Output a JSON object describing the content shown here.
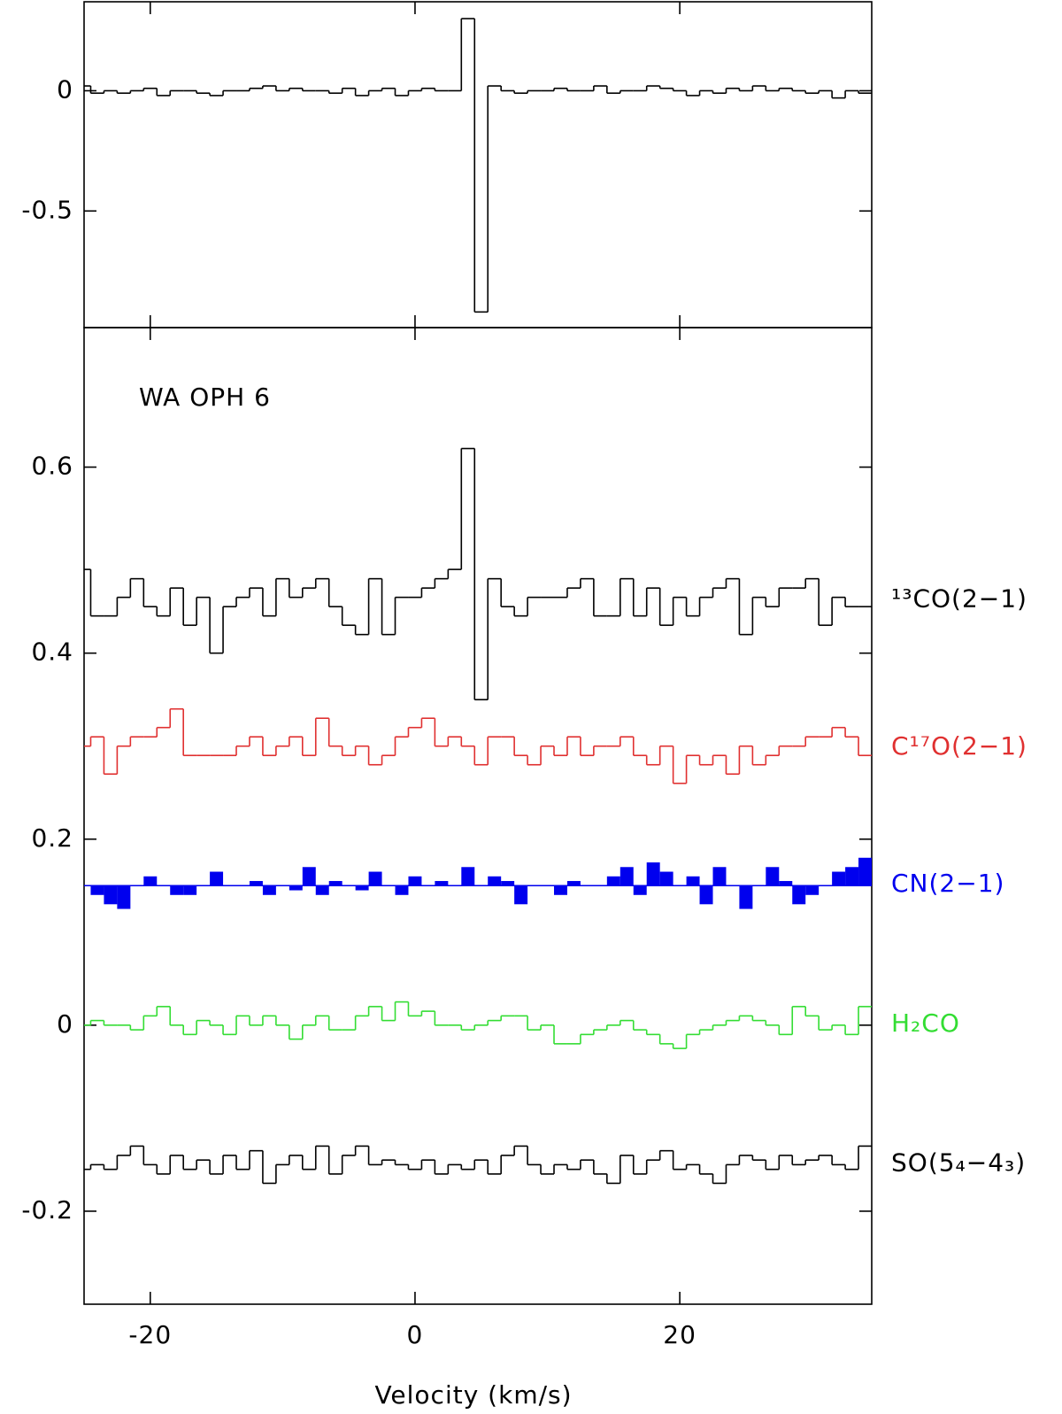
{
  "chart_data": [
    {
      "type": "step",
      "x": [
        -25,
        -24,
        -23,
        -22,
        -21,
        -20,
        -19,
        -18,
        -17,
        -16,
        -15,
        -14,
        -13,
        -12,
        -11,
        -10,
        -9,
        -8,
        -7,
        -6,
        -5,
        -4,
        -3,
        -2,
        -1,
        0,
        1,
        2,
        3,
        4,
        5,
        6,
        7,
        8,
        9,
        10,
        11,
        12,
        13,
        14,
        15,
        16,
        17,
        18,
        19,
        20,
        21,
        22,
        23,
        24,
        25,
        26,
        27,
        28,
        29,
        30,
        31,
        32,
        33,
        34
      ],
      "series": [
        {
          "color": "#000000",
          "values": [
            0.02,
            -0.01,
            0,
            -0.01,
            0,
            0.01,
            -0.02,
            0,
            0,
            -0.01,
            -0.02,
            0,
            0,
            0.01,
            0.02,
            0,
            0.01,
            0,
            0,
            -0.01,
            0.01,
            -0.02,
            0,
            0.01,
            -0.02,
            0,
            0.01,
            0,
            0,
            0.3,
            -0.92,
            0.02,
            0,
            -0.01,
            0,
            0,
            0.01,
            0,
            0,
            0.02,
            -0.01,
            0,
            0,
            0.02,
            0.01,
            0,
            -0.02,
            0,
            -0.01,
            0.01,
            0,
            0.02,
            0,
            0.01,
            0,
            -0.01,
            0,
            -0.03,
            0,
            -0.01
          ]
        }
      ],
      "xlim": [
        -25,
        34.5
      ],
      "xticks": [
        -20,
        0,
        20
      ],
      "ylim": [
        -0.985,
        0.37
      ],
      "yticks": [
        -0.5,
        0
      ]
    },
    {
      "type": "step",
      "annotation": "WA OPH 6",
      "xlabel": "Velocity (km/s)",
      "x": [
        -25,
        -24,
        -23,
        -22,
        -21,
        -20,
        -19,
        -18,
        -17,
        -16,
        -15,
        -14,
        -13,
        -12,
        -11,
        -10,
        -9,
        -8,
        -7,
        -6,
        -5,
        -4,
        -3,
        -2,
        -1,
        0,
        1,
        2,
        3,
        4,
        5,
        6,
        7,
        8,
        9,
        10,
        11,
        12,
        13,
        14,
        15,
        16,
        17,
        18,
        19,
        20,
        21,
        22,
        23,
        24,
        25,
        26,
        27,
        28,
        29,
        30,
        31,
        32,
        33,
        34
      ],
      "series": [
        {
          "name": "¹³CO(2−1)",
          "color": "#000000",
          "values": [
            0.49,
            0.44,
            0.44,
            0.46,
            0.48,
            0.45,
            0.44,
            0.47,
            0.43,
            0.46,
            0.4,
            0.45,
            0.46,
            0.47,
            0.44,
            0.48,
            0.46,
            0.47,
            0.48,
            0.45,
            0.43,
            0.42,
            0.48,
            0.42,
            0.46,
            0.46,
            0.47,
            0.48,
            0.49,
            0.62,
            0.35,
            0.48,
            0.45,
            0.44,
            0.46,
            0.46,
            0.46,
            0.47,
            0.48,
            0.44,
            0.44,
            0.48,
            0.44,
            0.47,
            0.43,
            0.46,
            0.44,
            0.46,
            0.47,
            0.48,
            0.42,
            0.46,
            0.45,
            0.47,
            0.47,
            0.48,
            0.43,
            0.46,
            0.45,
            0.45
          ]
        },
        {
          "name": "C¹⁷O(2−1)",
          "color": "#e03030",
          "values": [
            0.3,
            0.31,
            0.27,
            0.3,
            0.31,
            0.31,
            0.32,
            0.34,
            0.29,
            0.29,
            0.29,
            0.29,
            0.3,
            0.31,
            0.29,
            0.3,
            0.31,
            0.29,
            0.33,
            0.3,
            0.29,
            0.3,
            0.28,
            0.29,
            0.31,
            0.32,
            0.33,
            0.3,
            0.31,
            0.3,
            0.28,
            0.31,
            0.31,
            0.29,
            0.28,
            0.3,
            0.29,
            0.31,
            0.29,
            0.3,
            0.3,
            0.31,
            0.29,
            0.28,
            0.3,
            0.26,
            0.29,
            0.28,
            0.29,
            0.27,
            0.3,
            0.28,
            0.29,
            0.3,
            0.3,
            0.31,
            0.31,
            0.32,
            0.31,
            0.29
          ]
        },
        {
          "name": "CN(2−1)",
          "color": "#0000ee",
          "fill": true,
          "baseline": 0.15,
          "values": [
            0.15,
            0.14,
            0.13,
            0.125,
            0.15,
            0.16,
            0.15,
            0.14,
            0.14,
            0.15,
            0.165,
            0.15,
            0.15,
            0.155,
            0.14,
            0.15,
            0.145,
            0.17,
            0.14,
            0.155,
            0.15,
            0.145,
            0.165,
            0.15,
            0.14,
            0.16,
            0.15,
            0.155,
            0.15,
            0.17,
            0.15,
            0.16,
            0.155,
            0.13,
            0.15,
            0.15,
            0.14,
            0.155,
            0.15,
            0.15,
            0.16,
            0.17,
            0.14,
            0.175,
            0.165,
            0.15,
            0.16,
            0.13,
            0.17,
            0.15,
            0.125,
            0.15,
            0.17,
            0.155,
            0.13,
            0.14,
            0.15,
            0.165,
            0.17,
            0.18
          ]
        },
        {
          "name": "H₂CO",
          "color": "#33dd33",
          "values": [
            0,
            0.005,
            0,
            0,
            -0.005,
            0.01,
            0.02,
            0,
            -0.01,
            0.005,
            0,
            -0.01,
            0.01,
            0,
            0.01,
            0,
            -0.015,
            0,
            0.01,
            -0.005,
            -0.005,
            0.01,
            0.02,
            0.005,
            0.025,
            0.01,
            0.015,
            0,
            0,
            -0.005,
            0,
            0.005,
            0.01,
            0.01,
            -0.005,
            0,
            -0.02,
            -0.02,
            -0.01,
            -0.005,
            0,
            0.005,
            -0.005,
            -0.01,
            -0.02,
            -0.025,
            -0.01,
            -0.005,
            0,
            0.005,
            0.01,
            0.005,
            0,
            -0.01,
            0.02,
            0.01,
            -0.005,
            0,
            -0.01,
            0.02
          ]
        },
        {
          "name": "SO(5₄−4₃)",
          "color": "#000000",
          "values": [
            -0.155,
            -0.15,
            -0.155,
            -0.14,
            -0.13,
            -0.15,
            -0.16,
            -0.14,
            -0.155,
            -0.145,
            -0.16,
            -0.14,
            -0.155,
            -0.135,
            -0.17,
            -0.15,
            -0.14,
            -0.155,
            -0.13,
            -0.16,
            -0.14,
            -0.13,
            -0.15,
            -0.145,
            -0.15,
            -0.155,
            -0.145,
            -0.16,
            -0.15,
            -0.155,
            -0.145,
            -0.16,
            -0.14,
            -0.13,
            -0.15,
            -0.16,
            -0.15,
            -0.155,
            -0.145,
            -0.16,
            -0.17,
            -0.14,
            -0.16,
            -0.145,
            -0.135,
            -0.155,
            -0.15,
            -0.16,
            -0.17,
            -0.15,
            -0.14,
            -0.145,
            -0.155,
            -0.14,
            -0.15,
            -0.145,
            -0.14,
            -0.15,
            -0.155,
            -0.13
          ]
        }
      ],
      "xlim": [
        -25,
        34.5
      ],
      "xticks": [
        -20,
        0,
        20
      ],
      "ylim": [
        -0.3,
        0.75
      ],
      "yticks": [
        -0.2,
        0,
        0.2,
        0.4,
        0.6
      ]
    }
  ]
}
